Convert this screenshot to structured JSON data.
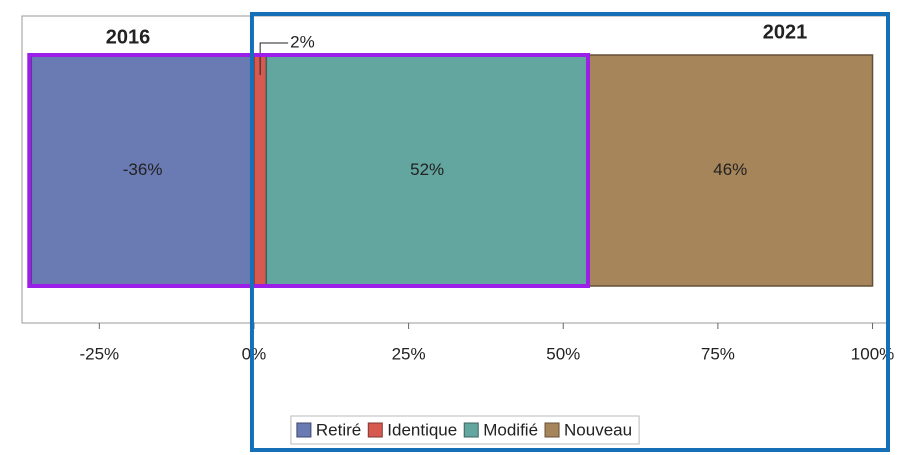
{
  "chart_data": {
    "type": "stacked-bar",
    "series": [
      {
        "name": "Retiré",
        "color": "#6a7ab3",
        "values": [
          -36
        ],
        "value_labels": [
          "-36%"
        ]
      },
      {
        "name": "Identique",
        "color": "#d65a50",
        "values": [
          2
        ],
        "value_labels": [
          "2%"
        ]
      },
      {
        "name": "Modifié",
        "color": "#63a59f",
        "values": [
          52
        ],
        "value_labels": [
          "52%"
        ]
      },
      {
        "name": "Nouveau",
        "color": "#a7855b",
        "values": [
          46
        ],
        "value_labels": [
          "46%"
        ]
      }
    ],
    "xlim": [
      -37.5,
      102.5
    ],
    "xticks": [
      {
        "value": -25,
        "label": "-25%"
      },
      {
        "value": 0,
        "label": "0%"
      },
      {
        "value": 25,
        "label": "25%"
      },
      {
        "value": 50,
        "label": "50%"
      },
      {
        "value": 75,
        "label": "75%"
      },
      {
        "value": 100,
        "label": "100%"
      }
    ],
    "annotations": [
      {
        "text": "2016",
        "color": "#9b1fe8"
      },
      {
        "text": "2021",
        "color": "#1570b8"
      }
    ]
  }
}
